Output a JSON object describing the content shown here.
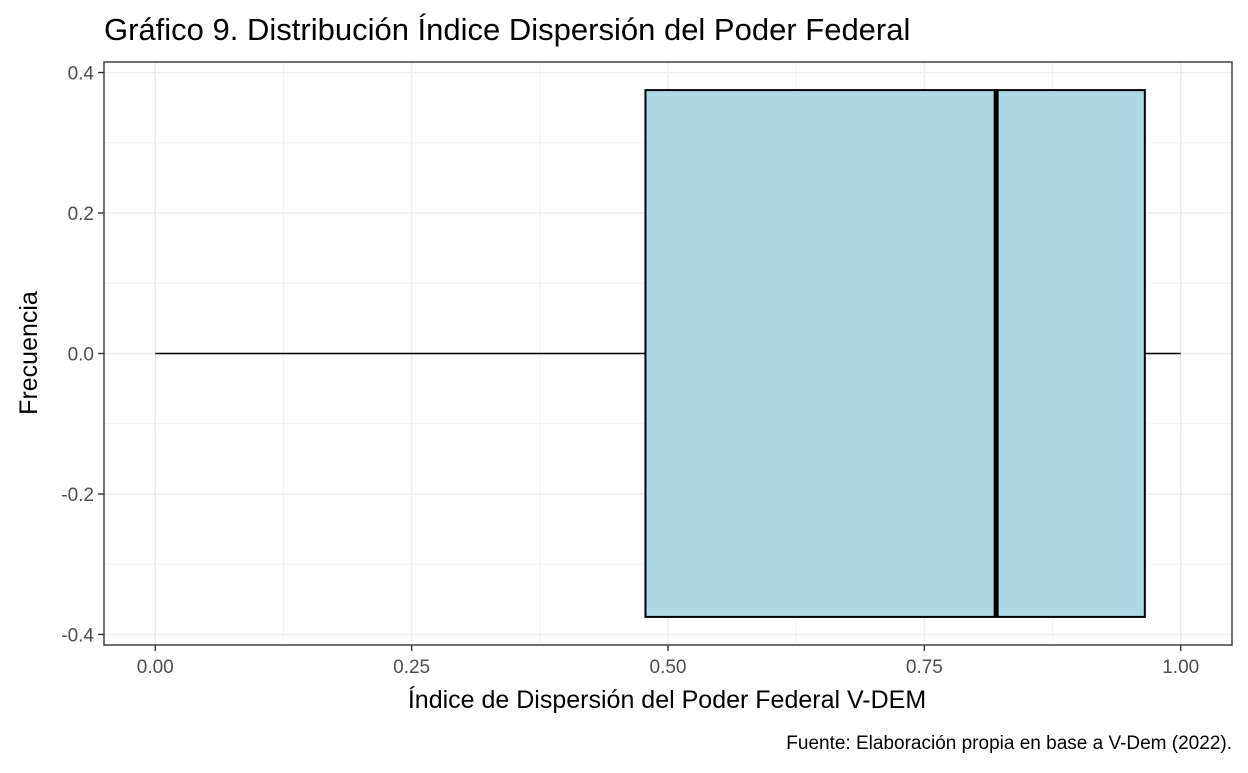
{
  "chart_data": {
    "type": "boxplot",
    "title": "Gráfico 9. Distribución Índice Dispersión del Poder Federal",
    "xlabel": "Índice de Dispersión del Poder Federal V-DEM",
    "ylabel": "Frecuencia",
    "caption": "Fuente: Elaboración propia en base a V-Dem (2022).",
    "xlim": [
      -0.05,
      1.05
    ],
    "ylim": [
      -0.415,
      0.415
    ],
    "x_ticks": [
      0.0,
      0.25,
      0.5,
      0.75,
      1.0
    ],
    "x_tick_labels": [
      "0.00",
      "0.25",
      "0.50",
      "0.75",
      "1.00"
    ],
    "y_ticks": [
      -0.4,
      -0.2,
      0.0,
      0.2,
      0.4
    ],
    "y_tick_labels": [
      "-0.4",
      "-0.2",
      "0.0",
      "0.2",
      "0.4"
    ],
    "grid": true,
    "box": {
      "min": 0.0,
      "q1": 0.478,
      "median": 0.82,
      "q3": 0.965,
      "max": 1.0,
      "y_center": 0.0,
      "half_width": 0.375,
      "fill": "#add8e6"
    }
  }
}
